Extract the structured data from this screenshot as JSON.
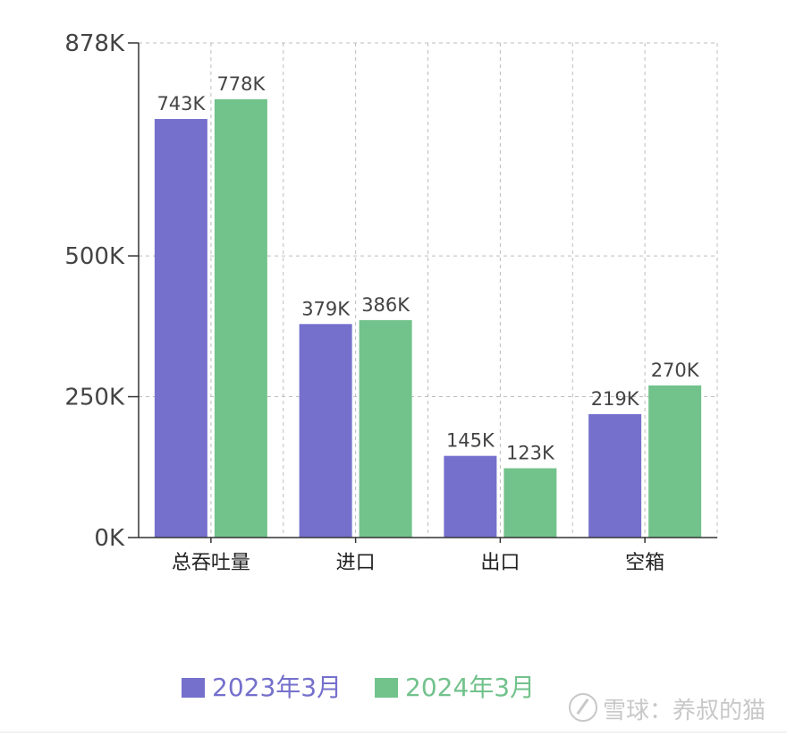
{
  "colors": {
    "series_2023": "#7570cc",
    "series_2024": "#72c28c",
    "axis": "#333333",
    "grid": "#bdbdbd",
    "label": "#444444"
  },
  "watermark": {
    "text": "雪球：养叔的猫"
  },
  "chart_data": {
    "type": "bar",
    "categories": [
      "总吞吐量",
      "进口",
      "出口",
      "空箱"
    ],
    "series": [
      {
        "name": "2023年3月",
        "values": [
          743,
          379,
          145,
          219
        ],
        "labels": [
          "743K",
          "379K",
          "145K",
          "219K"
        ]
      },
      {
        "name": "2024年3月",
        "values": [
          778,
          386,
          123,
          270
        ],
        "labels": [
          "778K",
          "386K",
          "123K",
          "270K"
        ]
      }
    ],
    "yticks": [
      0,
      250,
      500,
      878
    ],
    "ytick_labels": [
      "0K",
      "250K",
      "500K",
      "878K"
    ],
    "ylim": [
      0,
      878
    ],
    "unit": "K",
    "grid": true,
    "legend_position": "bottom"
  }
}
